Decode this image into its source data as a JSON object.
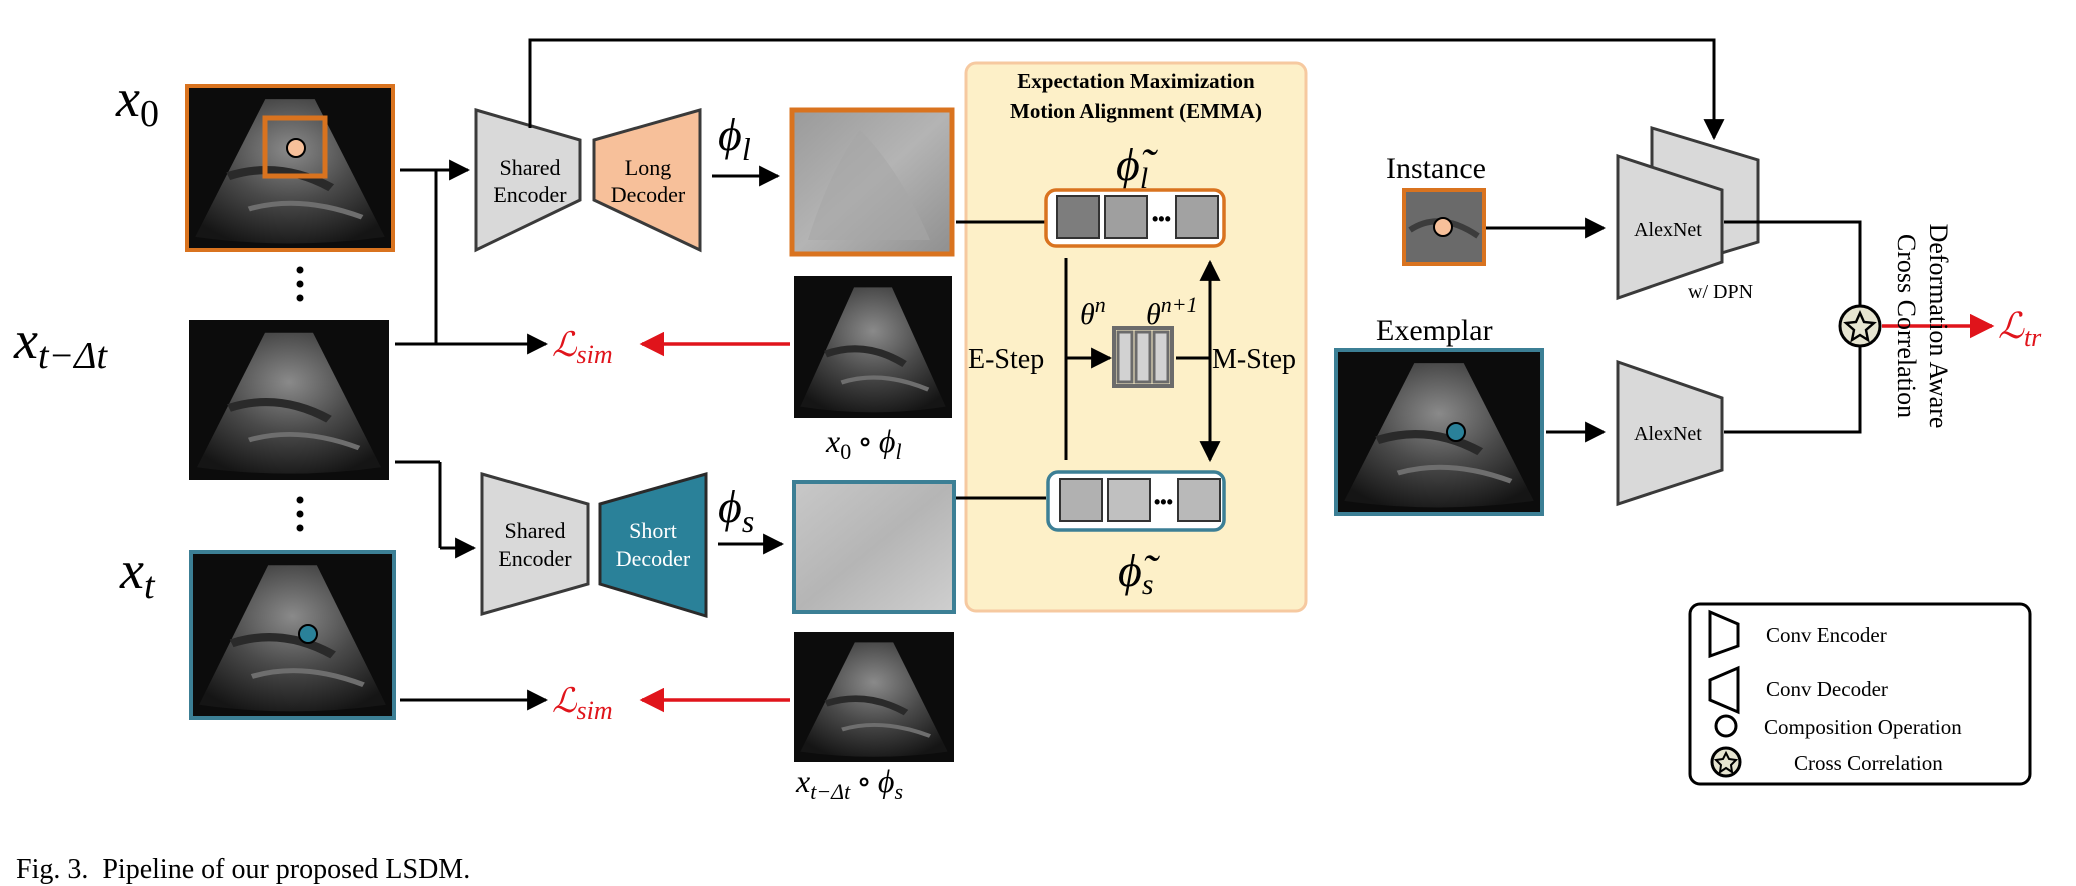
{
  "inputs": {
    "x0_base": "x",
    "x0_sub": "0",
    "xtdt_base": "x",
    "xtdt_sub": "t−Δt",
    "xt_base": "x",
    "xt_sub": "t"
  },
  "encoders": {
    "shared_top_line1": "Shared",
    "shared_top_line2": "Encoder",
    "shared_bottom_line1": "Shared",
    "shared_bottom_line2": "Encoder"
  },
  "decoders": {
    "long_line1": "Long",
    "long_line2": "Decoder",
    "short_line1": "Short",
    "short_line2": "Decoder"
  },
  "fields": {
    "phi_l_base": "ϕ",
    "phi_l_sub": "l",
    "phi_s_base": "ϕ",
    "phi_s_sub": "s"
  },
  "warped": {
    "top_a": "x",
    "top_a_sub": "0",
    "top_op": "∘",
    "top_b": "ϕ",
    "top_b_sub": "l",
    "bottom_a": "x",
    "bottom_a_sub": "t−Δt",
    "bottom_op": "∘",
    "bottom_b": "ϕ",
    "bottom_b_sub": "s"
  },
  "losses": {
    "sim_top_base": "ℒ",
    "sim_top_sub": "sim",
    "sim_bottom_base": "ℒ",
    "sim_bottom_sub": "sim",
    "tr_base": "ℒ",
    "tr_sub": "tr"
  },
  "emma": {
    "title_line1": "Expectation Maximization",
    "title_line2": "Motion Alignment (EMMA)",
    "phi_l_tilde_base": "ϕ̃",
    "phi_l_tilde_sub": "l",
    "phi_s_tilde_base": "ϕ̃",
    "phi_s_tilde_sub": "s",
    "theta_n_base": "θ",
    "theta_n_sup": "n",
    "theta_n1_base": "θ",
    "theta_n1_sup": "n+1",
    "e_step": "E-Step",
    "m_step": "M-Step",
    "ellipsis": "•••"
  },
  "tracking": {
    "instance_label": "Instance",
    "exemplar_label": "Exemplar",
    "alexnet_top": "AlexNet",
    "alexnet_bottom": "AlexNet",
    "dpn_label": "w/ DPN",
    "dacc_line1": "Deformation Aware",
    "dacc_line2": "Cross Correlation"
  },
  "legend": {
    "conv_encoder": "Conv Encoder",
    "conv_decoder": "Conv Decoder",
    "composition": "Composition Operation",
    "cross_correlation": "Cross Correlation"
  },
  "caption": {
    "text": "Fig. 3.  Pipeline of our proposed LSDM."
  },
  "colors": {
    "orange": "#D9731F",
    "peach": "#F7C09A",
    "teal": "#2A8199",
    "teal_border": "#3C7F95",
    "gray_block": "#D9D9D9",
    "emma_bg": "#FDF0C8",
    "emma_border": "#F6C9A0",
    "loss_red": "#E0141B",
    "ultrasound_bg": "#0c0c0c"
  }
}
